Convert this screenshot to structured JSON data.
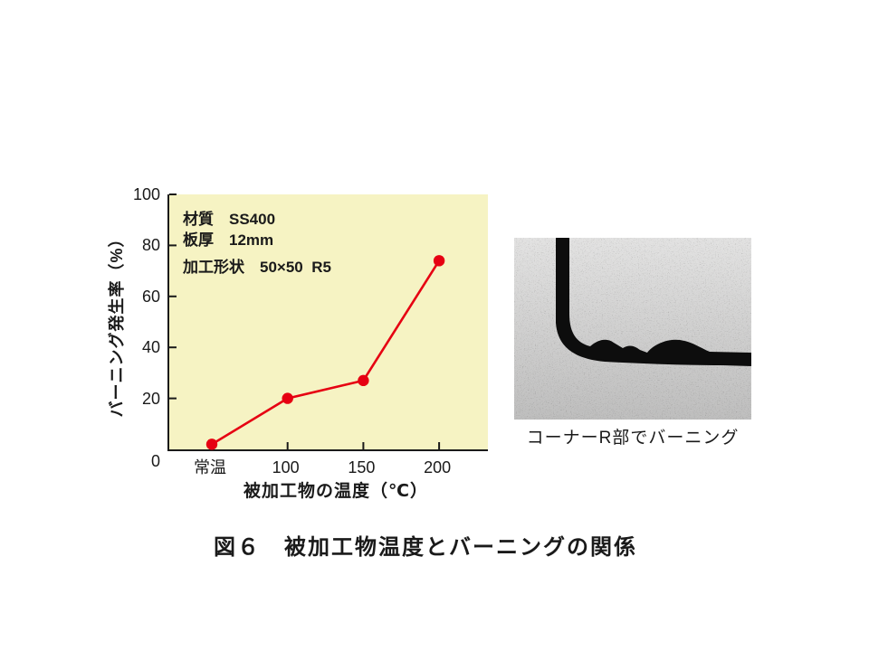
{
  "figure": {
    "caption": "図６　被加工物温度とバーニングの関係"
  },
  "chart_data": {
    "type": "line",
    "categories": [
      "常温",
      "100",
      "150",
      "200"
    ],
    "values": [
      2,
      20,
      27,
      74
    ],
    "title": "",
    "xlabel": "被加工物の温度（℃）",
    "ylabel": "バーニング発生率（%）",
    "ylim": [
      0,
      100
    ],
    "yticks": [
      0,
      20,
      40,
      60,
      80,
      100
    ],
    "grid": "off",
    "legend": "none",
    "series_color": "#e60012",
    "plot_background": "#f6f3c3",
    "annotations": [
      "材質　SS400",
      "板厚　12mm",
      "加工形状　50×50  R5"
    ]
  },
  "photo": {
    "caption": "コーナーR部でバーニング",
    "description": "grayscale macro photo of sheared steel edge, burning at corner R"
  }
}
